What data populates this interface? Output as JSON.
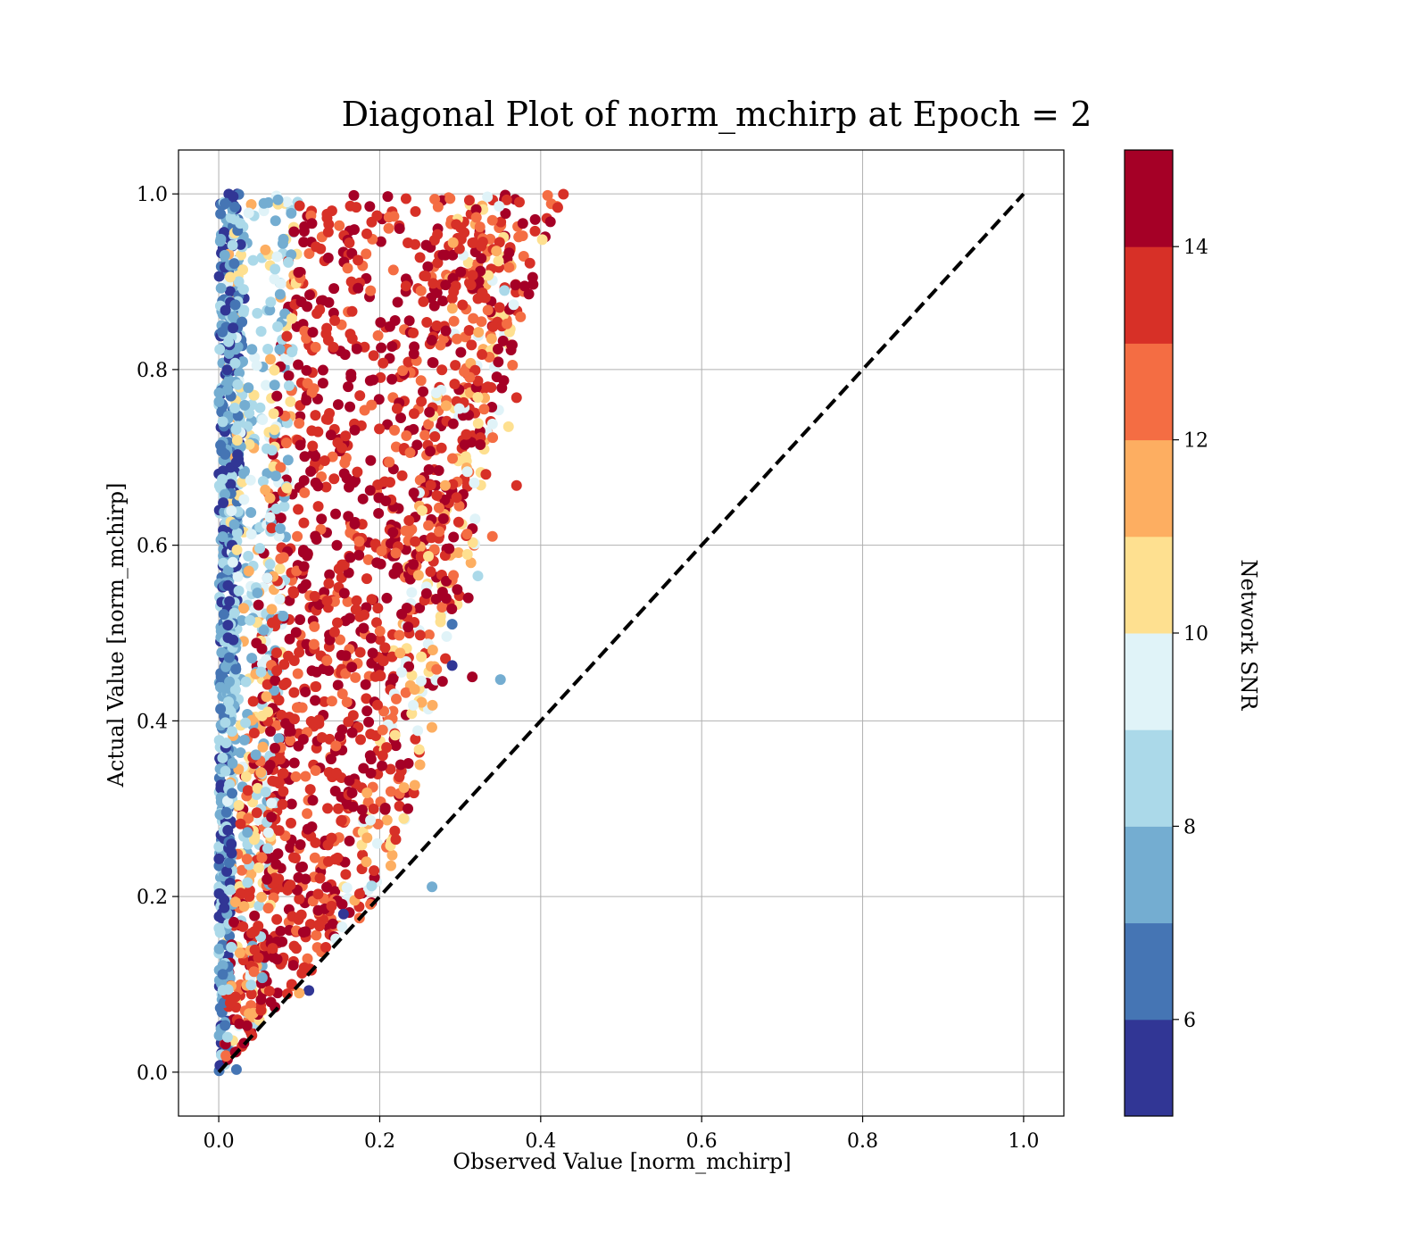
{
  "chart_data": {
    "type": "scatter",
    "title": "Diagonal Plot of norm_mchirp at Epoch = 2",
    "xlabel": "Observed Value [norm_mchirp]",
    "ylabel": "Actual Value [norm_mchirp]",
    "xlim": [
      -0.05,
      1.05
    ],
    "ylim": [
      -0.05,
      1.05
    ],
    "x_ticks": [
      "0.0",
      "0.2",
      "0.4",
      "0.6",
      "0.8",
      "1.0"
    ],
    "y_ticks": [
      "0.0",
      "0.2",
      "0.4",
      "0.6",
      "0.8",
      "1.0"
    ],
    "grid": true,
    "reference_line": {
      "x": [
        0,
        1
      ],
      "y": [
        0,
        1
      ],
      "style": "dashed",
      "color": "#000000"
    },
    "colorbar": {
      "label": "Network SNR",
      "range": [
        5,
        15
      ],
      "ticks": [
        "6",
        "8",
        "10",
        "12",
        "14"
      ],
      "colors": [
        "#313695",
        "#4575b4",
        "#74add1",
        "#abd9e9",
        "#e0f3f8",
        "#fee090",
        "#fdae61",
        "#f46d43",
        "#d73027",
        "#a50026"
      ]
    },
    "points": [
      {
        "x": 0.39,
        "y": 0.905,
        "snr": 14.5
      },
      {
        "x": 0.402,
        "y": 0.948,
        "snr": 10.5
      },
      {
        "x": 0.375,
        "y": 0.86,
        "snr": 12.5
      },
      {
        "x": 0.37,
        "y": 0.768,
        "snr": 13.5
      },
      {
        "x": 0.37,
        "y": 0.668,
        "snr": 13.5
      },
      {
        "x": 0.35,
        "y": 0.447,
        "snr": 7.5
      },
      {
        "x": 0.315,
        "y": 0.45,
        "snr": 14.5
      },
      {
        "x": 0.29,
        "y": 0.463,
        "snr": 5.5
      },
      {
        "x": 0.278,
        "y": 0.445,
        "snr": 14.5
      },
      {
        "x": 0.265,
        "y": 0.211,
        "snr": 7.5
      },
      {
        "x": 0.175,
        "y": 0.203,
        "snr": 13.5
      },
      {
        "x": 0.112,
        "y": 0.093,
        "snr": 5.5
      },
      {
        "x": 0.108,
        "y": 0.16,
        "snr": 14.5
      },
      {
        "x": 0.1,
        "y": 0.09,
        "snr": 11.5
      },
      {
        "x": 0.022,
        "y": 0.003,
        "snr": 6.5
      },
      {
        "x": 0.34,
        "y": 0.61,
        "snr": 12.5
      },
      {
        "x": 0.322,
        "y": 0.565,
        "snr": 8.5
      },
      {
        "x": 0.31,
        "y": 0.54,
        "snr": 14.5
      },
      {
        "x": 0.29,
        "y": 0.51,
        "snr": 6.5
      },
      {
        "x": 0.25,
        "y": 0.35,
        "snr": 11.5
      },
      {
        "x": 0.235,
        "y": 0.3,
        "snr": 14.5
      },
      {
        "x": 0.22,
        "y": 0.265,
        "snr": 13.5
      },
      {
        "x": 0.19,
        "y": 0.212,
        "snr": 8.5
      },
      {
        "x": 0.155,
        "y": 0.18,
        "snr": 5.5
      },
      {
        "x": 0.36,
        "y": 0.735,
        "snr": 10.5
      },
      {
        "x": 0.365,
        "y": 0.805,
        "snr": 12.5
      },
      {
        "x": 0.355,
        "y": 0.89,
        "snr": 8.5
      },
      {
        "x": 0.345,
        "y": 0.935,
        "snr": 11.5
      },
      {
        "x": 0.34,
        "y": 0.97,
        "snr": 12.5
      },
      {
        "x": 0.21,
        "y": 0.997,
        "snr": 14.5
      },
      {
        "x": 0.018,
        "y": 0.997,
        "snr": 5.5
      },
      {
        "x": 0.02,
        "y": 0.985,
        "snr": 6.5
      }
    ],
    "dense_points_note": ""
  }
}
